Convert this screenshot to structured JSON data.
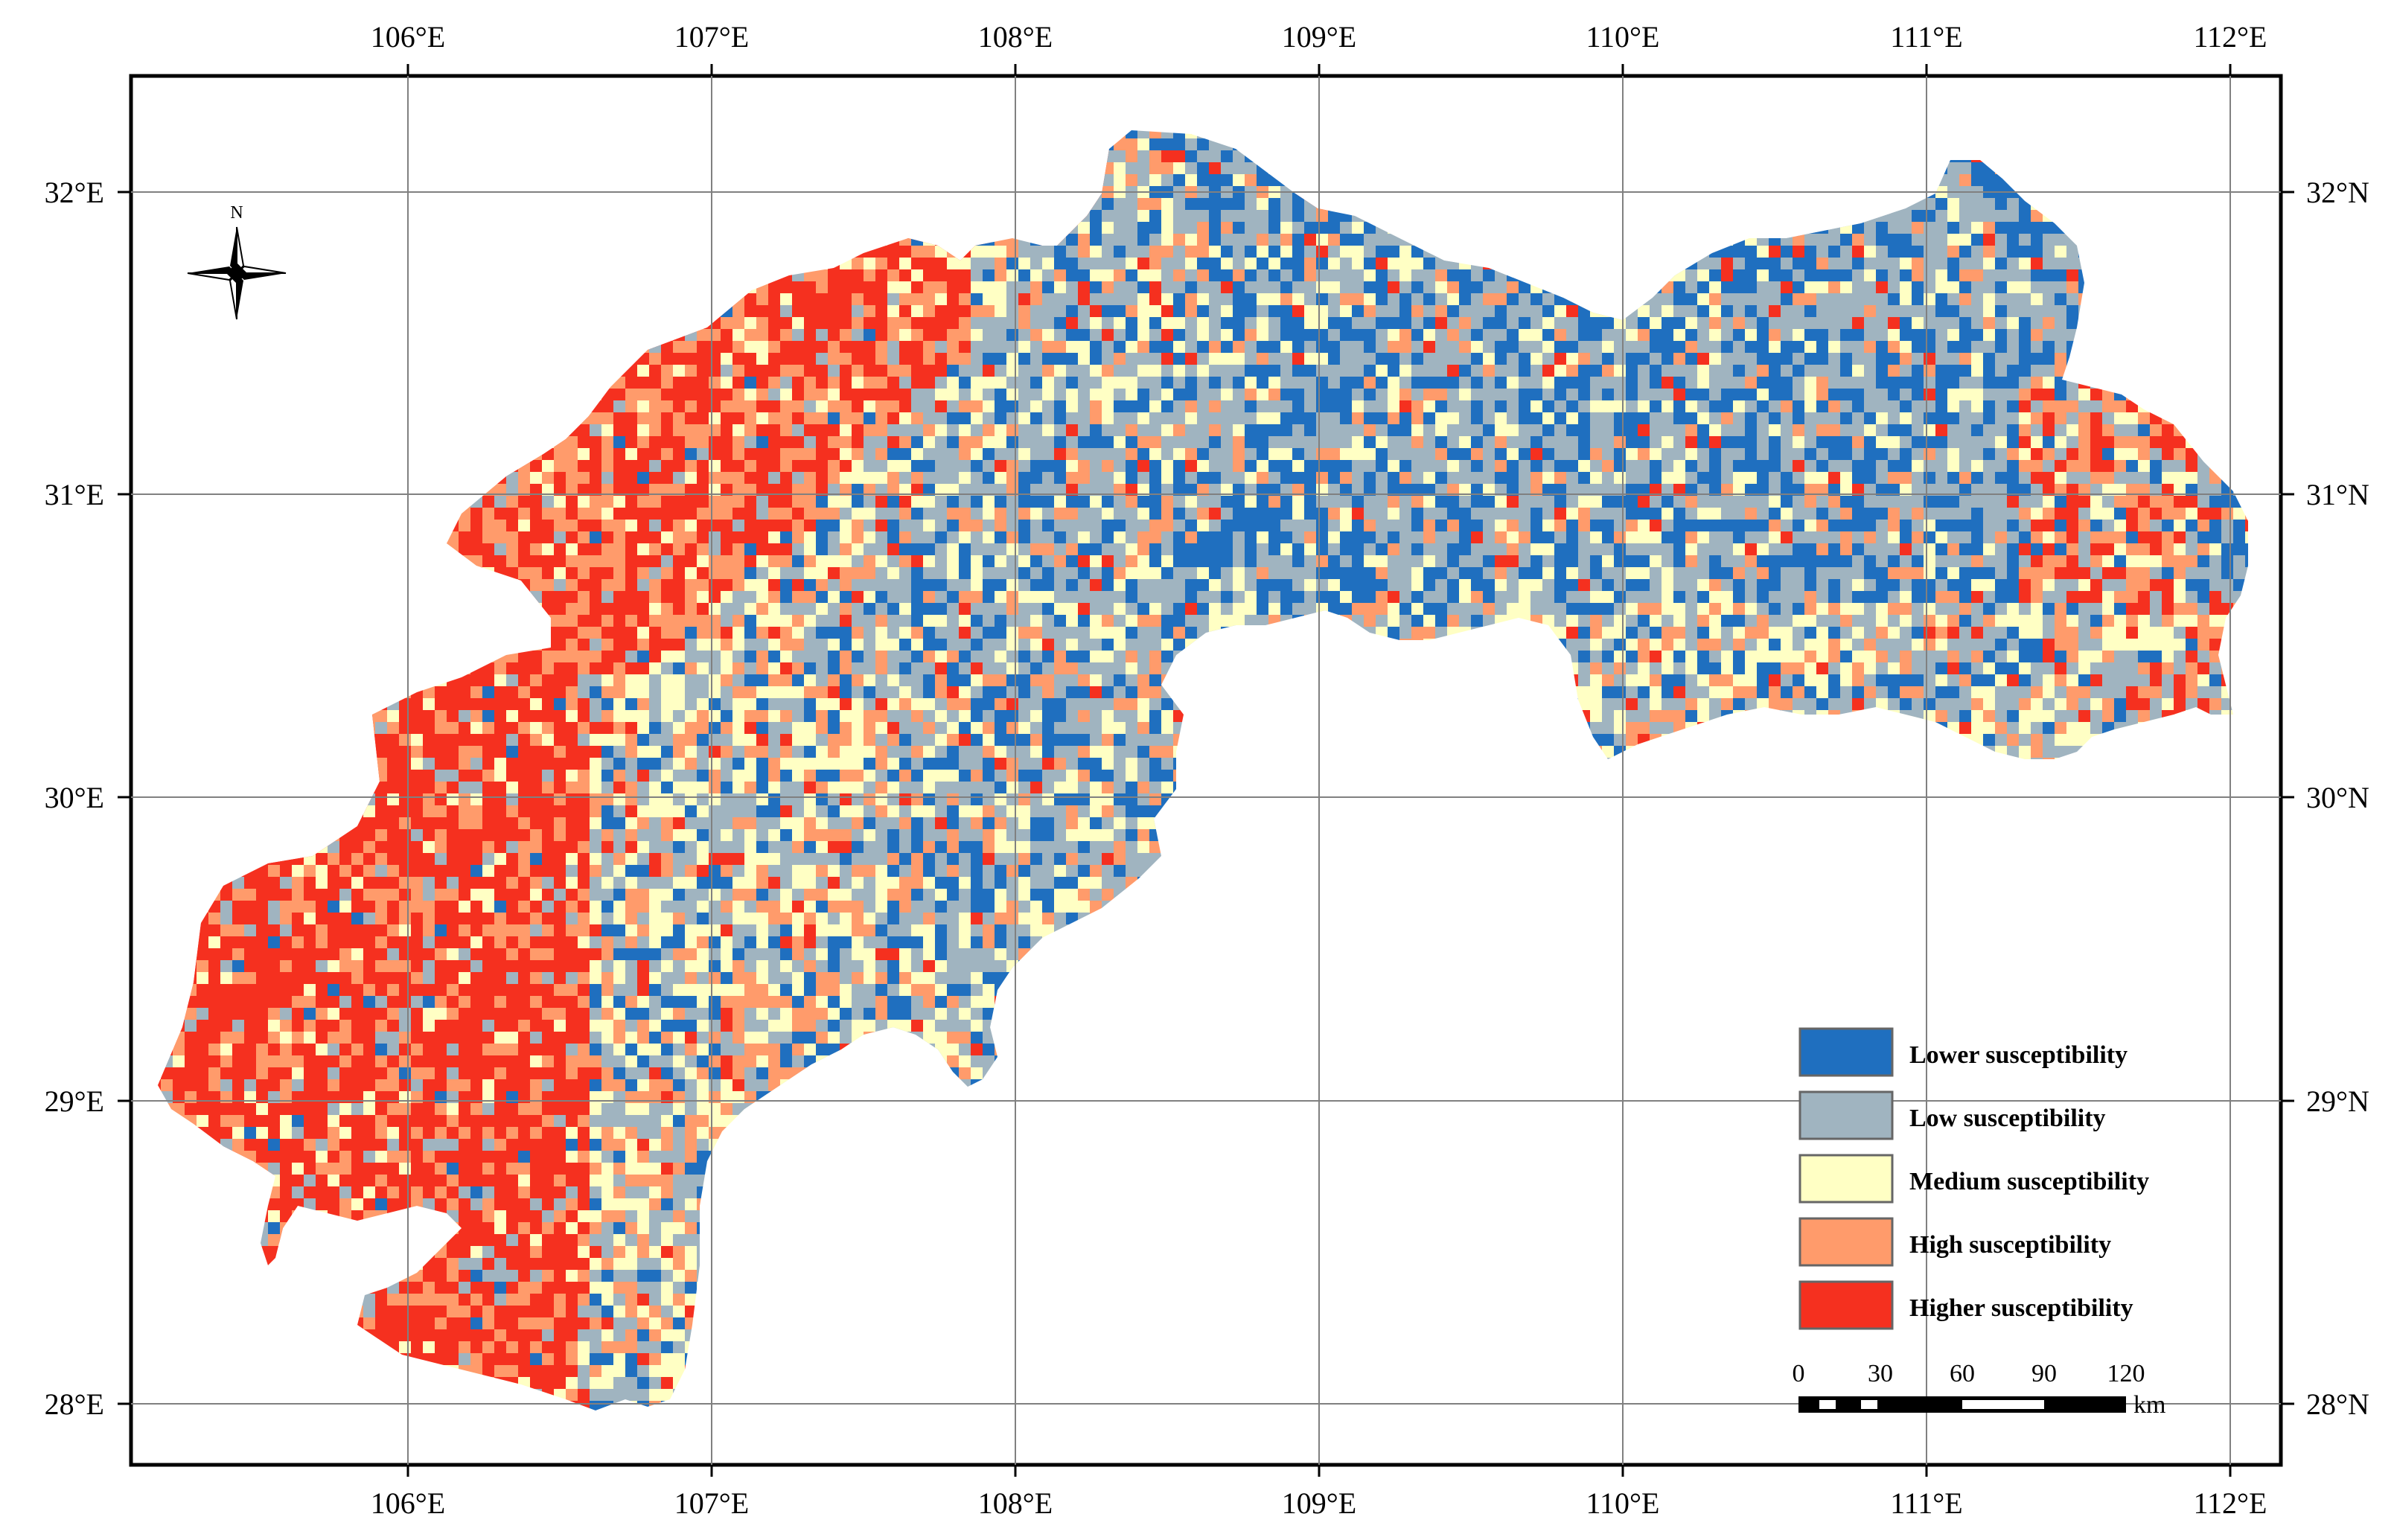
{
  "map": {
    "colors": {
      "lower": "#1f6fbf",
      "low": "#a0b4c0",
      "medium": "#ffffc4",
      "high": "#ff9b6b",
      "higher": "#f5301f"
    },
    "graticule": {
      "lon_labels": [
        "106°E",
        "107°E",
        "108°E",
        "109°E",
        "110°E",
        "111°E",
        "112°E"
      ],
      "lat_labels_left": [
        "32°E",
        "31°E",
        "30°E",
        "29°E",
        "28°E"
      ],
      "lat_labels_right": [
        "32°N",
        "31°N",
        "30°N",
        "29°N",
        "28°N"
      ]
    },
    "north_arrow": {
      "label": "N",
      "icon": "compass-rose-icon"
    },
    "legend": {
      "items": [
        {
          "label": "Lower susceptibility",
          "color": "#1f6fbf"
        },
        {
          "label": "Low susceptibility",
          "color": "#a0b4c0"
        },
        {
          "label": "Medium susceptibility",
          "color": "#ffffc4"
        },
        {
          "label": "High susceptibility",
          "color": "#ff9b6b"
        },
        {
          "label": "Higher susceptibility",
          "color": "#f5301f"
        }
      ]
    },
    "scale_bar": {
      "ticks": [
        "0",
        "30",
        "60",
        "90",
        "120"
      ],
      "unit": "km"
    }
  }
}
